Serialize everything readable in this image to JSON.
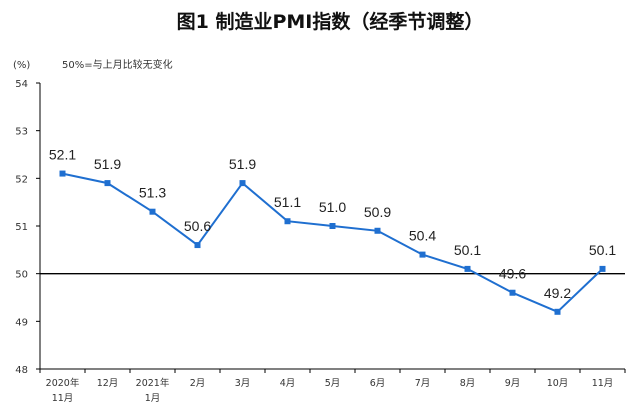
{
  "chart_data": {
    "type": "line",
    "title": "图1  制造业PMI指数（经季节调整）",
    "ylabel": "(%)",
    "note": "50%=与上月比较无变化",
    "ylim": [
      48,
      54
    ],
    "yticks": [
      48,
      49,
      50,
      51,
      52,
      53,
      54
    ],
    "reference_line": 50,
    "categories": [
      [
        "2020年",
        "11月"
      ],
      [
        "12月"
      ],
      [
        "2021年",
        "1月"
      ],
      [
        "2月"
      ],
      [
        "3月"
      ],
      [
        "4月"
      ],
      [
        "5月"
      ],
      [
        "6月"
      ],
      [
        "7月"
      ],
      [
        "8月"
      ],
      [
        "9月"
      ],
      [
        "10月"
      ],
      [
        "11月"
      ]
    ],
    "series": [
      {
        "values": [
          52.1,
          51.9,
          51.3,
          50.6,
          51.9,
          51.1,
          51.0,
          50.9,
          50.4,
          50.1,
          49.6,
          49.2,
          50.1
        ],
        "labels": [
          "52.1",
          "51.9",
          "51.3",
          "50.6",
          "51.9",
          "51.1",
          "51.0",
          "50.9",
          "50.4",
          "50.1",
          "49.6",
          "49.2",
          "50.1"
        ],
        "color": "#1f6fd0"
      }
    ],
    "grid": false,
    "legend": "none"
  }
}
